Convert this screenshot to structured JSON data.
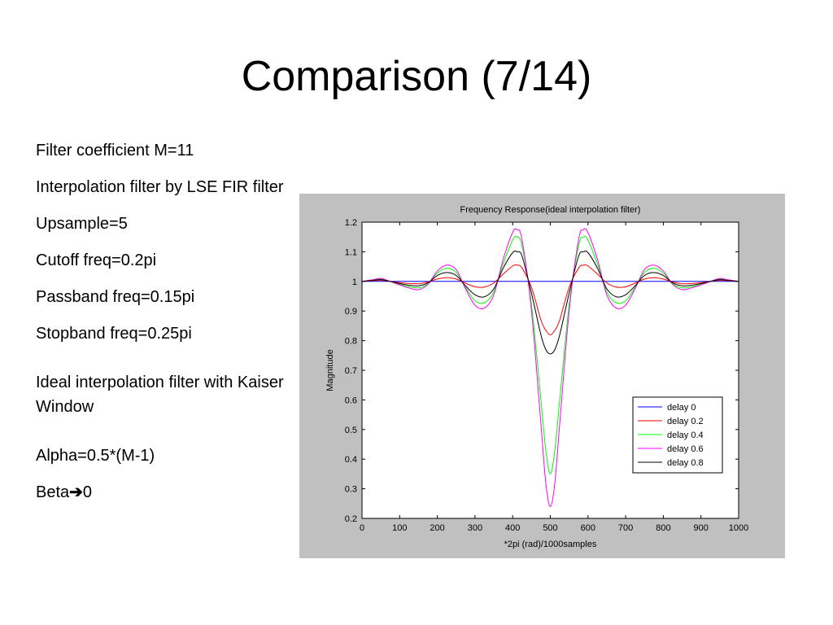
{
  "slide": {
    "title": "Comparison (7/14)",
    "bullets": [
      "Filter coefficient M=11",
      "Interpolation filter by LSE FIR filter",
      "Upsample=5",
      "Cutoff freq=0.2pi",
      "Passband freq=0.15pi",
      "Stopband freq=0.25pi",
      "Ideal interpolation filter with Kaiser Window",
      "Alpha=0.5*(M-1)"
    ],
    "beta": {
      "label": "Beta",
      "arrow": "➔",
      "value": "0"
    }
  },
  "chart_data": {
    "type": "line",
    "title": "Frequency Response(ideal interpolation filter)",
    "xlabel": "*2pi (rad)/1000samples",
    "ylabel": "Magnitude",
    "xlim": [
      0,
      1000
    ],
    "ylim": [
      0.2,
      1.2
    ],
    "xticks": [
      0,
      100,
      200,
      300,
      400,
      500,
      600,
      700,
      800,
      900,
      1000
    ],
    "yticks": [
      0.2,
      0.3,
      0.4,
      0.5,
      0.6,
      0.7,
      0.8,
      0.9,
      1,
      1.1,
      1.2
    ],
    "grid": false,
    "legend_position": "lower-right",
    "x": [
      0,
      25,
      50,
      75,
      100,
      125,
      150,
      175,
      200,
      225,
      250,
      275,
      300,
      325,
      350,
      375,
      400,
      412,
      425,
      450,
      475,
      488,
      500,
      512,
      525,
      550,
      575,
      588,
      600,
      625,
      650,
      675,
      700,
      725,
      750,
      775,
      800,
      825,
      850,
      875,
      900,
      925,
      950,
      975,
      1000
    ],
    "series": [
      {
        "name": "delay 0",
        "color": "#0000ff",
        "values": [
          1,
          1,
          1,
          1,
          1,
          1,
          1,
          1,
          1,
          1,
          1,
          1,
          1,
          1,
          1,
          1,
          1,
          1,
          1,
          1,
          1,
          1,
          1,
          1,
          1,
          1,
          1,
          1,
          1,
          1,
          1,
          1,
          1,
          1,
          1,
          1,
          1,
          1,
          1,
          1,
          1,
          1,
          1,
          1,
          1
        ]
      },
      {
        "name": "delay 0.2",
        "color": "#ff0000",
        "values": [
          1.0,
          1.002,
          1.004,
          1.0,
          0.996,
          0.993,
          0.992,
          0.998,
          1.008,
          1.013,
          1.008,
          0.994,
          0.982,
          0.981,
          0.995,
          1.025,
          1.052,
          1.055,
          1.045,
          0.98,
          0.87,
          0.835,
          0.82,
          0.835,
          0.87,
          0.98,
          1.045,
          1.055,
          1.052,
          1.025,
          0.995,
          0.981,
          0.982,
          0.994,
          1.008,
          1.013,
          1.008,
          0.998,
          0.992,
          0.993,
          0.996,
          1.0,
          1.004,
          1.002,
          1.0
        ]
      },
      {
        "name": "delay 0.4",
        "color": "#00ff00",
        "values": [
          1.0,
          1.004,
          1.008,
          1.0,
          0.99,
          0.982,
          0.978,
          0.992,
          1.028,
          1.045,
          1.03,
          0.98,
          0.935,
          0.928,
          0.965,
          1.06,
          1.14,
          1.15,
          1.12,
          0.92,
          0.6,
          0.43,
          0.35,
          0.43,
          0.6,
          0.92,
          1.12,
          1.15,
          1.14,
          1.06,
          0.965,
          0.928,
          0.935,
          0.98,
          1.03,
          1.045,
          1.028,
          0.992,
          0.978,
          0.982,
          0.99,
          1.0,
          1.008,
          1.004,
          1.0
        ]
      },
      {
        "name": "delay 0.6",
        "color": "#ff00ff",
        "values": [
          1.0,
          1.005,
          1.01,
          1.0,
          0.988,
          0.978,
          0.972,
          0.99,
          1.035,
          1.055,
          1.04,
          0.975,
          0.92,
          0.91,
          0.955,
          1.075,
          1.165,
          1.175,
          1.14,
          0.9,
          0.52,
          0.32,
          0.24,
          0.32,
          0.52,
          0.9,
          1.14,
          1.175,
          1.165,
          1.075,
          0.955,
          0.91,
          0.92,
          0.975,
          1.04,
          1.055,
          1.035,
          0.99,
          0.972,
          0.978,
          0.988,
          1.0,
          1.01,
          1.005,
          1.0
        ]
      },
      {
        "name": "delay 0.8",
        "color": "#000000",
        "values": [
          1.0,
          1.003,
          1.006,
          1.0,
          0.993,
          0.987,
          0.985,
          0.995,
          1.02,
          1.03,
          1.02,
          0.985,
          0.955,
          0.948,
          0.975,
          1.045,
          1.097,
          1.1,
          1.085,
          0.96,
          0.82,
          0.77,
          0.755,
          0.77,
          0.82,
          0.96,
          1.085,
          1.1,
          1.097,
          1.045,
          0.975,
          0.948,
          0.955,
          0.985,
          1.02,
          1.03,
          1.02,
          0.995,
          0.985,
          0.987,
          0.993,
          1.0,
          1.006,
          1.003,
          1.0
        ]
      }
    ]
  }
}
